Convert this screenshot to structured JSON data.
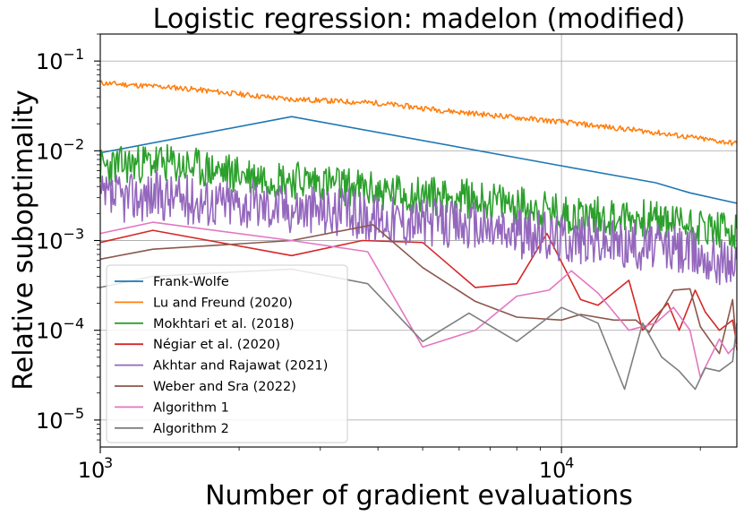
{
  "chart_data": {
    "type": "line",
    "title": "Logistic regression: madelon (modified)",
    "xlabel": "Number of gradient evaluations",
    "ylabel": "Relative suboptimality",
    "xscale": "log",
    "yscale": "log",
    "xlim": [
      1000,
      24000
    ],
    "ylim": [
      5e-06,
      0.2
    ],
    "grid": true,
    "legend_position": "lower-left",
    "x_ticks": [
      {
        "value": 1000,
        "base": "10",
        "exp": "3"
      },
      {
        "value": 10000,
        "base": "10",
        "exp": "4"
      }
    ],
    "y_ticks": [
      {
        "value": 1e-05,
        "base": "10",
        "exp": "−5"
      },
      {
        "value": 0.0001,
        "base": "10",
        "exp": "−4"
      },
      {
        "value": 0.001,
        "base": "10",
        "exp": "−3"
      },
      {
        "value": 0.01,
        "base": "10",
        "exp": "−2"
      },
      {
        "value": 0.1,
        "base": "10",
        "exp": "−1"
      }
    ],
    "series": [
      {
        "name": "Frank-Wolfe",
        "color": "#1f77b4",
        "style": "smooth",
        "x": [
          1000,
          2600,
          10000,
          16000,
          19000,
          24000
        ],
        "y": [
          0.0095,
          0.024,
          0.0068,
          0.0044,
          0.0034,
          0.0026
        ]
      },
      {
        "name": "Lu and Freund (2020)",
        "color": "#ff7f0e",
        "style": "noisy",
        "noise": 0.03,
        "step": 1.006,
        "seed": 11,
        "x": [
          1000,
          1500,
          2500,
          4000,
          6000,
          10000,
          16000,
          24000
        ],
        "y": [
          0.057,
          0.05,
          0.038,
          0.034,
          0.027,
          0.021,
          0.016,
          0.012
        ]
      },
      {
        "name": "Mokhtari et al. (2018)",
        "color": "#2ca02c",
        "style": "noisy",
        "noise": 0.22,
        "step": 1.005,
        "seed": 23,
        "x": [
          1000,
          1300,
          1600,
          2000,
          3000,
          4000,
          6000,
          8000,
          10000,
          14000,
          18000,
          24000
        ],
        "y": [
          0.0065,
          0.0075,
          0.0065,
          0.0055,
          0.0045,
          0.0035,
          0.003,
          0.0025,
          0.002,
          0.0018,
          0.0016,
          0.0012
        ]
      },
      {
        "name": "Négiar et al. (2020)",
        "color": "#d62728",
        "style": "smooth",
        "x": [
          1000,
          1300,
          2600,
          3700,
          5000,
          6500,
          8000,
          9300,
          11000,
          12000,
          14000,
          15000,
          17000,
          18000,
          19500,
          20500,
          22000,
          23500,
          24000
        ],
        "y": [
          0.00095,
          0.0013,
          0.00068,
          0.001,
          0.00095,
          0.0003,
          0.00033,
          0.0012,
          0.00022,
          0.00019,
          0.00036,
          0.0001,
          0.0002,
          0.0001,
          0.00028,
          0.00016,
          0.0001,
          0.00013,
          7e-05
        ]
      },
      {
        "name": "Akhtar and Rajawat (2021)",
        "color": "#9467bd",
        "style": "noisy",
        "noise": 0.28,
        "step": 1.005,
        "seed": 37,
        "x": [
          1000,
          1300,
          1600,
          2000,
          3000,
          4000,
          6000,
          8000,
          10000,
          14000,
          18000,
          24000
        ],
        "y": [
          0.0028,
          0.0032,
          0.0028,
          0.0026,
          0.0022,
          0.0018,
          0.0015,
          0.0012,
          0.0011,
          0.0009,
          0.0008,
          0.00055
        ]
      },
      {
        "name": "Weber and Sra (2022)",
        "color": "#8c564b",
        "style": "smooth",
        "x": [
          1000,
          1300,
          2600,
          3900,
          5000,
          6500,
          8000,
          10000,
          11000,
          13000,
          14500,
          15500,
          17500,
          19000,
          20000,
          22000,
          23500,
          24000
        ],
        "y": [
          0.00062,
          0.0008,
          0.001,
          0.0015,
          0.0005,
          0.00021,
          0.00014,
          0.00013,
          0.00015,
          0.00013,
          0.00013,
          9.5e-05,
          0.00028,
          0.00029,
          0.00011,
          5.5e-05,
          0.00022,
          6e-05
        ]
      },
      {
        "name": "Algorithm 1",
        "color": "#e377c2",
        "style": "smooth",
        "x": [
          1000,
          1300,
          2600,
          3800,
          5000,
          6500,
          8000,
          9400,
          10500,
          12000,
          14000,
          16000,
          17500,
          19000,
          20000,
          22000,
          23000,
          24000
        ],
        "y": [
          0.0012,
          0.0016,
          0.001,
          0.00075,
          6.5e-05,
          0.0001,
          0.00024,
          0.00028,
          0.00046,
          0.00026,
          0.0001,
          0.00012,
          0.00018,
          0.0001,
          3e-05,
          8e-05,
          5.5e-05,
          7e-05
        ]
      },
      {
        "name": "Algorithm 2",
        "color": "#7f7f7f",
        "style": "smooth",
        "x": [
          1000,
          1300,
          2600,
          3800,
          5000,
          6300,
          8000,
          10000,
          12000,
          13700,
          15000,
          16500,
          18000,
          19500,
          20500,
          22000,
          23500,
          24000
        ],
        "y": [
          0.0003,
          0.0004,
          0.00048,
          0.00033,
          7.5e-05,
          0.000155,
          7.5e-05,
          0.00018,
          0.00012,
          2.2e-05,
          0.00012,
          5e-05,
          3.5e-05,
          2.2e-05,
          3.8e-05,
          3.5e-05,
          4.5e-05,
          0.00012
        ]
      }
    ]
  }
}
